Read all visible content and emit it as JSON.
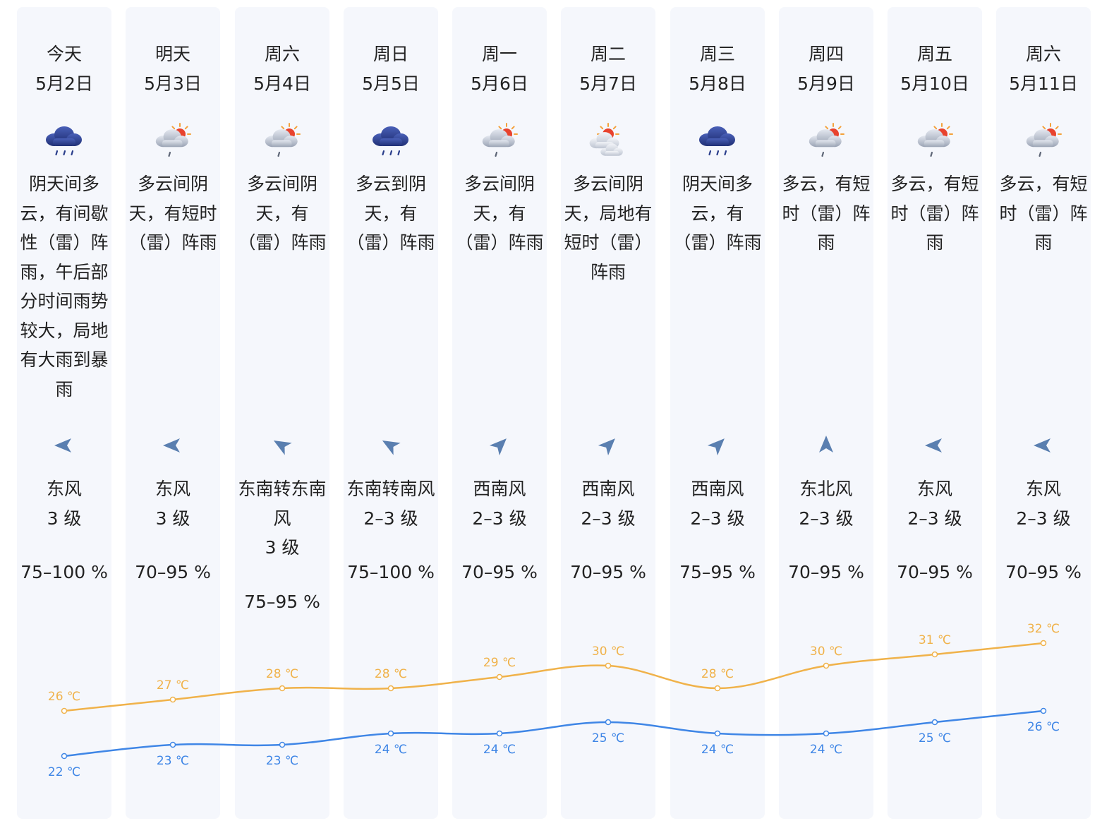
{
  "colors": {
    "column_bg": "#f5f7fc",
    "text": "#222222",
    "high_line": "#f0b24a",
    "low_line": "#3f86e6",
    "wind_arrow": "#5a7fb0",
    "rain_cloud": "#2b3f8c"
  },
  "temp_unit": "℃",
  "days": [
    {
      "day": "今天",
      "date": "5月2日",
      "icon": "rain-cloud-icon",
      "desc": "阴天间多云，有间歇性（雷）阵雨，午后部分时间雨势较大，局地有大雨到暴雨",
      "wind_dir": "东风",
      "wind_level": "3 级",
      "humidity": "75–100 %",
      "wind_angle": 180
    },
    {
      "day": "明天",
      "date": "5月3日",
      "icon": "sun-cloud-rain-icon",
      "desc": "多云间阴天，有短时（雷）阵雨",
      "wind_dir": "东风",
      "wind_level": "3 级",
      "humidity": "70–95 %",
      "wind_angle": 180
    },
    {
      "day": "周六",
      "date": "5月4日",
      "icon": "sun-cloud-rain-icon",
      "desc": "多云间阴天，有（雷）阵雨",
      "wind_dir": "东南转东南风",
      "wind_level": "3 级",
      "humidity": "75–95 %",
      "wind_angle": 210
    },
    {
      "day": "周日",
      "date": "5月5日",
      "icon": "rain-cloud-icon",
      "desc": "多云到阴天，有（雷）阵雨",
      "wind_dir": "东南转南风",
      "wind_level": "2–3 级",
      "humidity": "75–100 %",
      "wind_angle": 210
    },
    {
      "day": "周一",
      "date": "5月6日",
      "icon": "sun-cloud-rain-icon",
      "desc": "多云间阴天，有（雷）阵雨",
      "wind_dir": "西南风",
      "wind_level": "2–3 级",
      "humidity": "70–95 %",
      "wind_angle": 315
    },
    {
      "day": "周二",
      "date": "5月7日",
      "icon": "sun-clouds-icon",
      "desc": "多云间阴天，局地有短时（雷）阵雨",
      "wind_dir": "西南风",
      "wind_level": "2–3 级",
      "humidity": "70–95 %",
      "wind_angle": 315
    },
    {
      "day": "周三",
      "date": "5月8日",
      "icon": "rain-cloud-icon",
      "desc": "阴天间多云，有（雷）阵雨",
      "wind_dir": "西南风",
      "wind_level": "2–3 级",
      "humidity": "75–95 %",
      "wind_angle": 315
    },
    {
      "day": "周四",
      "date": "5月9日",
      "icon": "sun-cloud-rain-icon",
      "desc": "多云，有短时（雷）阵雨",
      "wind_dir": "东北风",
      "wind_level": "2–3 级",
      "humidity": "70–95 %",
      "wind_angle": 270
    },
    {
      "day": "周五",
      "date": "5月10日",
      "icon": "sun-cloud-rain-icon",
      "desc": "多云，有短时（雷）阵雨",
      "wind_dir": "东风",
      "wind_level": "2–3 级",
      "humidity": "70–95 %",
      "wind_angle": 180
    },
    {
      "day": "周六",
      "date": "5月11日",
      "icon": "sun-cloud-rain-icon",
      "desc": "多云，有短时（雷）阵雨",
      "wind_dir": "东风",
      "wind_level": "2–3 级",
      "humidity": "70–95 %",
      "wind_angle": 180
    }
  ],
  "chart_data": {
    "type": "line",
    "categories": [
      "5月2日",
      "5月3日",
      "5月4日",
      "5月5日",
      "5月6日",
      "5月7日",
      "5月8日",
      "5月9日",
      "5月10日",
      "5月11日"
    ],
    "series": [
      {
        "values": [
          26,
          27,
          28,
          28,
          29,
          30,
          28,
          30,
          31,
          32
        ],
        "color": "#f0b24a"
      },
      {
        "values": [
          22,
          23,
          23,
          24,
          24,
          25,
          24,
          24,
          25,
          26
        ],
        "color": "#3f86e6"
      }
    ],
    "unit": "℃",
    "grid": false,
    "legend": "none"
  }
}
